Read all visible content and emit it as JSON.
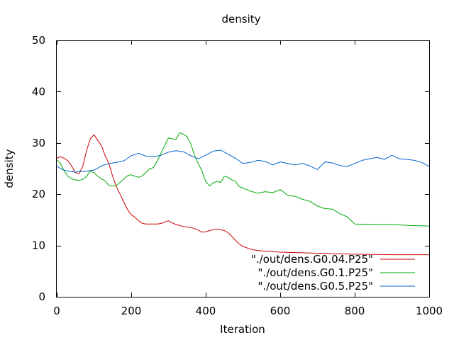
{
  "chart_data": {
    "type": "line",
    "title": "density",
    "xlabel": "Iteration",
    "ylabel": "density",
    "xlim": [
      0,
      1000
    ],
    "ylim": [
      0,
      50
    ],
    "x_ticks": [
      "0",
      "200",
      "400",
      "600",
      "800",
      "1000"
    ],
    "y_ticks": [
      "0",
      "10",
      "20",
      "30",
      "40",
      "50"
    ],
    "grid": false,
    "legend_position": "bottom-right",
    "series": [
      {
        "name": "\"./out/dens.G0.04.P25\"",
        "color": "#cc0000",
        "x": [
          0,
          10,
          20,
          30,
          40,
          50,
          60,
          70,
          80,
          90,
          100,
          110,
          120,
          130,
          140,
          150,
          160,
          170,
          180,
          190,
          200,
          210,
          220,
          230,
          240,
          250,
          260,
          270,
          280,
          290,
          300,
          310,
          320,
          330,
          340,
          350,
          360,
          370,
          380,
          390,
          400,
          410,
          420,
          430,
          440,
          450,
          460,
          470,
          480,
          490,
          500,
          520,
          540,
          560,
          580,
          600,
          650,
          700,
          750,
          800,
          850,
          900,
          950,
          1000
        ],
        "y": [
          27,
          27.3,
          27,
          26.5,
          25.5,
          24.2,
          24,
          25.5,
          28.5,
          30.8,
          31.6,
          30.5,
          29.5,
          27.5,
          26,
          23.5,
          21.5,
          20,
          18.5,
          17,
          16,
          15.5,
          14.8,
          14.3,
          14.2,
          14.2,
          14.2,
          14.2,
          14.3,
          14.6,
          14.8,
          14.4,
          14.1,
          13.9,
          13.7,
          13.6,
          13.5,
          13.3,
          13,
          12.6,
          12.7,
          12.9,
          13.1,
          13.2,
          13.1,
          12.9,
          12.5,
          11.8,
          11,
          10.3,
          9.8,
          9.3,
          9.0,
          8.9,
          8.8,
          8.7,
          8.6,
          8.5,
          8.4,
          8.3,
          8.25,
          8.2,
          8.2,
          8.2
        ]
      },
      {
        "name": "\"./out/dens.G0.1.P25\"",
        "color": "#00aa00",
        "x": [
          0,
          10,
          20,
          30,
          40,
          50,
          60,
          70,
          80,
          90,
          100,
          110,
          120,
          130,
          140,
          150,
          160,
          170,
          180,
          190,
          200,
          210,
          220,
          230,
          240,
          250,
          260,
          270,
          280,
          290,
          300,
          310,
          320,
          330,
          340,
          350,
          360,
          370,
          380,
          390,
          400,
          410,
          420,
          430,
          440,
          450,
          460,
          470,
          480,
          490,
          500,
          520,
          540,
          560,
          580,
          600,
          620,
          640,
          660,
          680,
          700,
          720,
          740,
          760,
          780,
          800,
          850,
          900,
          950,
          1000
        ],
        "y": [
          26.7,
          26,
          24.5,
          23.5,
          23,
          22.8,
          22.7,
          22.9,
          23.5,
          24.5,
          24.2,
          23.5,
          23,
          22.6,
          21.7,
          21.6,
          21.7,
          22.3,
          23,
          23.6,
          23.8,
          23.5,
          23.3,
          23.6,
          24.3,
          25,
          25.2,
          26.5,
          28,
          29.5,
          31,
          30.8,
          30.7,
          32,
          31.7,
          31.2,
          29.8,
          27.5,
          26,
          24.5,
          22.5,
          21.6,
          22.2,
          22.5,
          22.3,
          23.5,
          23.3,
          22.8,
          22.5,
          21.5,
          21.2,
          20.6,
          20.2,
          20.5,
          20.3,
          20.9,
          19.8,
          19.6,
          19.0,
          18.6,
          17.7,
          17.2,
          17.1,
          16.2,
          15.6,
          14.2,
          14.1,
          14.1,
          13.9,
          13.8
        ]
      },
      {
        "name": "\"./out/dens.G0.5.P25\"",
        "color": "#0066cc",
        "x": [
          0,
          10,
          20,
          30,
          40,
          50,
          60,
          70,
          80,
          90,
          100,
          120,
          140,
          160,
          180,
          200,
          220,
          240,
          260,
          280,
          300,
          320,
          340,
          360,
          380,
          400,
          420,
          440,
          460,
          480,
          500,
          520,
          540,
          560,
          580,
          600,
          620,
          640,
          660,
          680,
          700,
          720,
          740,
          760,
          780,
          800,
          820,
          840,
          860,
          880,
          900,
          920,
          940,
          960,
          980,
          1000
        ],
        "y": [
          25.5,
          25,
          24.7,
          24.5,
          24.4,
          24.3,
          24.4,
          24.4,
          24.5,
          24.6,
          24.7,
          25.5,
          26,
          26.2,
          26.5,
          27.5,
          28,
          27.4,
          27.3,
          27.6,
          28.2,
          28.5,
          28.3,
          27.5,
          26.9,
          27.6,
          28.4,
          28.6,
          27.8,
          27.0,
          26.0,
          26.2,
          26.6,
          26.4,
          25.7,
          26.3,
          26.0,
          25.7,
          26.0,
          25.5,
          24.8,
          26.3,
          26.1,
          25.6,
          25.4,
          26.0,
          26.6,
          26.9,
          27.2,
          26.8,
          27.6,
          26.9,
          26.8,
          26.6,
          26.2,
          25.4
        ]
      }
    ]
  }
}
